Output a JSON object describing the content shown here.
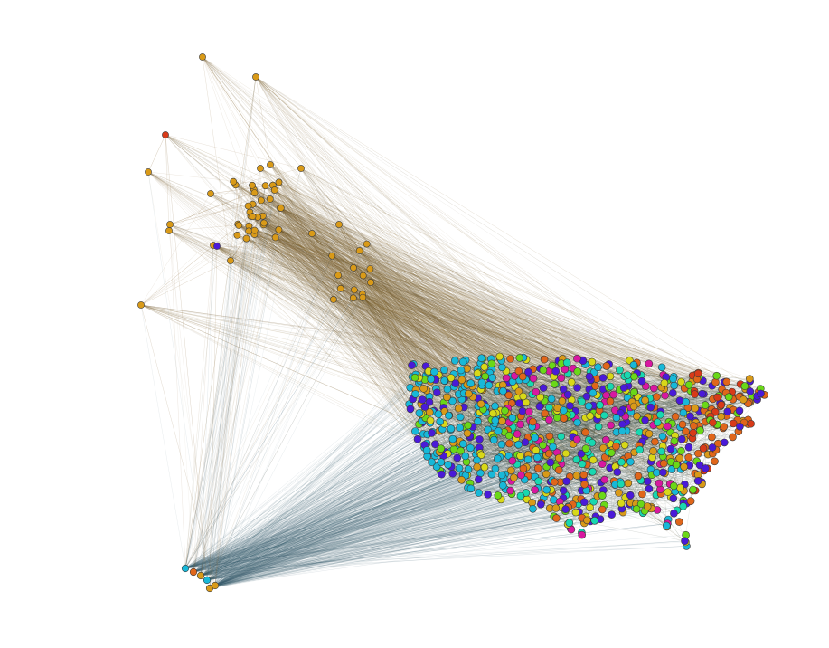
{
  "graph": {
    "kind": "geographic network graph",
    "background": "#ffffff",
    "edge_colors": [
      "#7a5a1e",
      "#4a6a7a",
      "#5a4a2a",
      "#2f5a6a",
      "#8a6a3a",
      "#3a4a3a"
    ],
    "node_stroke": "#3a3a3a",
    "node_palette": {
      "amber": "#d99a18",
      "orange": "#e0661a",
      "cyan": "#18b8d8",
      "blue": "#4a1ad8",
      "green": "#6ad818",
      "yellow": "#d8d818",
      "teal": "#18d8b0",
      "magenta": "#d818a0",
      "red": "#d83a18"
    }
  }
}
